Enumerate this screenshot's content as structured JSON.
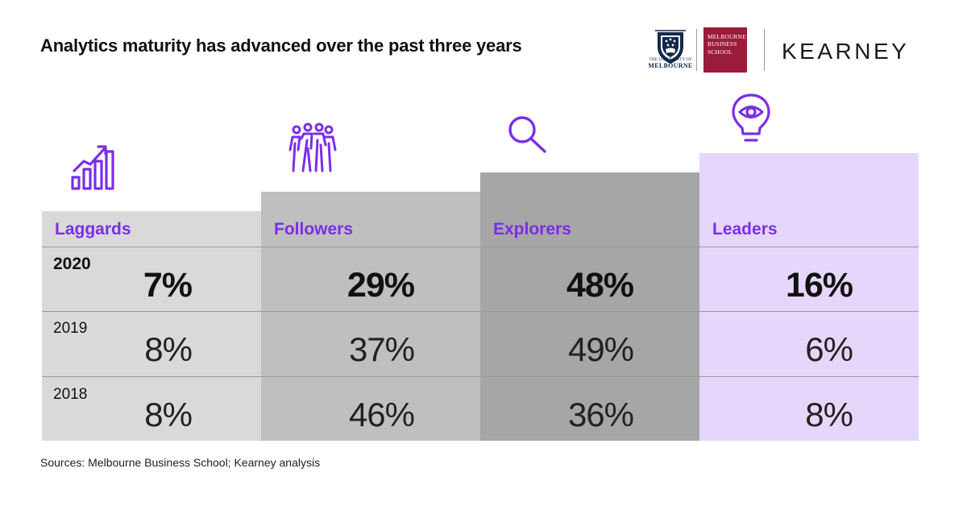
{
  "title": "Analytics maturity has advanced over the past three years",
  "logos": {
    "uom_line1": "THE UNIVERSITY OF",
    "uom_line2": "MELBOURNE",
    "mbs_line1": "MELBOURNE",
    "mbs_line2": "BUSINESS",
    "mbs_line3": "SCHOOL",
    "kearney": "KEARNEY"
  },
  "colors": {
    "accent": "#7b2ee8",
    "laggards_bg": "#d9d9d9",
    "followers_bg": "#bfbfbf",
    "explorers_bg": "#a6a6a6",
    "leaders_bg": "#e6d6fb"
  },
  "icons": {
    "laggards": "growth-chart-icon",
    "followers": "group-of-people-icon",
    "explorers": "magnifier-icon",
    "leaders": "lightbulb-eye-icon"
  },
  "chart_data": {
    "type": "table",
    "title": "Analytics maturity has advanced over the past three years",
    "categories": [
      "Laggards",
      "Followers",
      "Explorers",
      "Leaders"
    ],
    "series": [
      {
        "name": "2020",
        "values": [
          "7%",
          "29%",
          "48%",
          "16%"
        ]
      },
      {
        "name": "2019",
        "values": [
          "8%",
          "37%",
          "49%",
          "6%"
        ]
      },
      {
        "name": "2018",
        "values": [
          "8%",
          "46%",
          "36%",
          "8%"
        ]
      }
    ]
  },
  "source": "Sources: Melbourne Business School; Kearney analysis"
}
